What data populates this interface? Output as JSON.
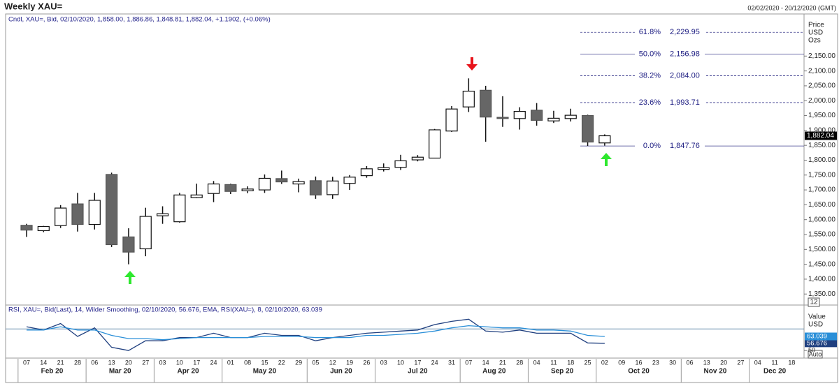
{
  "chart_data": {
    "type": "candlestick",
    "title": "Weekly XAU=",
    "date_range": "02/02/2020 - 20/12/2020 (GMT)",
    "subtitle": "Cndl, XAU=, Bid, 02/10/2020, 1,858.00, 1,886.86, 1,848.81, 1,882.04, +1.1902, (+0.06%)",
    "axis_labels": [
      "Price",
      "USD",
      "Ozs"
    ],
    "categories": [
      "07",
      "14",
      "21",
      "28",
      "06",
      "13",
      "20",
      "27",
      "03",
      "10",
      "17",
      "24",
      "01",
      "08",
      "15",
      "22",
      "29",
      "05",
      "12",
      "19",
      "26",
      "03",
      "10",
      "17",
      "24",
      "31",
      "07",
      "14",
      "21",
      "28",
      "04",
      "11",
      "18",
      "25",
      "02",
      "09",
      "16",
      "23",
      "30",
      "06",
      "13",
      "20",
      "27",
      "04",
      "11",
      "18"
    ],
    "months": [
      "Feb 20",
      "Mar 20",
      "Apr 20",
      "May 20",
      "Jun 20",
      "Jul 20",
      "Aug 20",
      "Sep 20",
      "Oct 20",
      "Nov 20",
      "Dec 20"
    ],
    "open": [
      1581,
      1563,
      1580,
      1653,
      1584,
      1752,
      1542,
      1502,
      1613,
      1593,
      1674,
      1688,
      1718,
      1697,
      1700,
      1738,
      1720,
      1731,
      1684,
      1722,
      1748,
      1769,
      1776,
      1801,
      1807,
      1898,
      1979,
      2035,
      1944,
      1940,
      1968,
      1932,
      1940,
      1950,
      1858,
      null,
      null,
      null,
      null,
      null,
      null,
      null,
      null,
      null,
      null,
      null
    ],
    "high": [
      1586,
      1579,
      1649,
      1690,
      1690,
      1758,
      1571,
      1640,
      1645,
      1690,
      1721,
      1730,
      1721,
      1712,
      1752,
      1765,
      1738,
      1745,
      1744,
      1750,
      1780,
      1789,
      1818,
      1817,
      1905,
      1982,
      2075,
      2050,
      2015,
      1978,
      1992,
      1966,
      1973,
      1953,
      1886.86,
      null,
      null,
      null,
      null,
      null,
      null,
      null,
      null,
      null,
      null,
      null
    ],
    "low": [
      1542,
      1558,
      1572,
      1560,
      1567,
      1508,
      1450,
      1477,
      1586,
      1590,
      1672,
      1659,
      1686,
      1689,
      1690,
      1720,
      1692,
      1670,
      1670,
      1700,
      1741,
      1762,
      1767,
      1796,
      1806,
      1895,
      1962,
      1862,
      1912,
      1903,
      1916,
      1925,
      1930,
      1848,
      1848.81,
      null,
      null,
      null,
      null,
      null,
      null,
      null,
      null,
      null,
      null,
      null
    ],
    "close": [
      1565,
      1577,
      1639,
      1584,
      1665,
      1516,
      1491,
      1611,
      1620,
      1683,
      1683,
      1720,
      1695,
      1703,
      1739,
      1727,
      1728,
      1683,
      1730,
      1743,
      1771,
      1775,
      1798,
      1810,
      1902,
      1972,
      2032,
      1945,
      1940,
      1964,
      1934,
      1941,
      1951,
      1861,
      1882.04,
      null,
      null,
      null,
      null,
      null,
      null,
      null,
      null,
      null,
      null,
      null
    ],
    "up_color": "#ffffff",
    "down_color": "#666666",
    "ylim": [
      1313,
      2254
    ],
    "yticks": [
      {
        "value": 1350,
        "label": "1,350.00"
      },
      {
        "value": 1400,
        "label": "1,400.00"
      },
      {
        "value": 1450,
        "label": "1,450.00"
      },
      {
        "value": 1500,
        "label": "1,500.00"
      },
      {
        "value": 1550,
        "label": "1,550.00"
      },
      {
        "value": 1600,
        "label": "1,600.00"
      },
      {
        "value": 1650,
        "label": "1,650.00"
      },
      {
        "value": 1700,
        "label": "1,700.00"
      },
      {
        "value": 1750,
        "label": "1,750.00"
      },
      {
        "value": 1800,
        "label": "1,800.00"
      },
      {
        "value": 1850,
        "label": "1,850.00"
      },
      {
        "value": 1900,
        "label": "1,900.00"
      },
      {
        "value": 1950,
        "label": "1,950.00"
      },
      {
        "value": 2000,
        "label": "2,000.00"
      },
      {
        "value": 2050,
        "label": "2,050.00"
      },
      {
        "value": 2100,
        "label": "2,100.00"
      },
      {
        "value": 2150,
        "label": "2,150.00"
      }
    ],
    "last_price": {
      "value": 1882.04,
      "label": "1,882.04"
    },
    "fib_levels": [
      {
        "label": "61.8%",
        "value": 2229.95,
        "value_label": "2,229.95",
        "dashed": true
      },
      {
        "label": "50.0%",
        "value": 2156.98,
        "value_label": "2,156.98",
        "dashed": false
      },
      {
        "label": "38.2%",
        "value": 2084.0,
        "value_label": "2,084.00",
        "dashed": true
      },
      {
        "label": "23.6%",
        "value": 1993.71,
        "value_label": "1,993.71",
        "dashed": true
      },
      {
        "label": "0.0%",
        "value": 1847.76,
        "value_label": "1,847.76",
        "dashed": false
      }
    ],
    "scale_box": "12",
    "rsi": {
      "type": "line",
      "title": "RSI, XAU=, Bid(Last), 14, Wilder Smoothing, 02/10/2020, 56.676, EMA, RSI(XAU=), 8, 02/10/2020, 63.039",
      "axis_labels": [
        "Value",
        "USD"
      ],
      "ylim": [
        43,
        85
      ],
      "yticks": [
        50
      ],
      "reference_line": 70,
      "auto_label": "Auto",
      "series": [
        {
          "color": "#1f3f7f",
          "last_label": "56.676",
          "values": [
            72,
            69,
            75,
            63,
            71,
            53,
            50,
            59,
            59,
            62,
            62,
            66,
            62,
            62,
            66,
            64,
            64,
            59,
            62,
            64,
            66,
            67,
            68,
            69,
            74,
            77,
            79,
            68,
            67,
            69,
            66,
            66,
            66,
            57,
            56.676,
            null,
            null,
            null,
            null,
            null,
            null,
            null,
            null,
            null,
            null,
            null
          ]
        },
        {
          "color": "#2a8fd8",
          "last_label": "63.039",
          "values": [
            69,
            69,
            72,
            69,
            69,
            64,
            61,
            61,
            60,
            61,
            62,
            62,
            62,
            62,
            63,
            63,
            63,
            62,
            62,
            62,
            64,
            64,
            65,
            66,
            68,
            71,
            73,
            72,
            71,
            71,
            69,
            69,
            68,
            64,
            63.039,
            null,
            null,
            null,
            null,
            null,
            null,
            null,
            null,
            null,
            null,
            null
          ]
        }
      ]
    }
  }
}
